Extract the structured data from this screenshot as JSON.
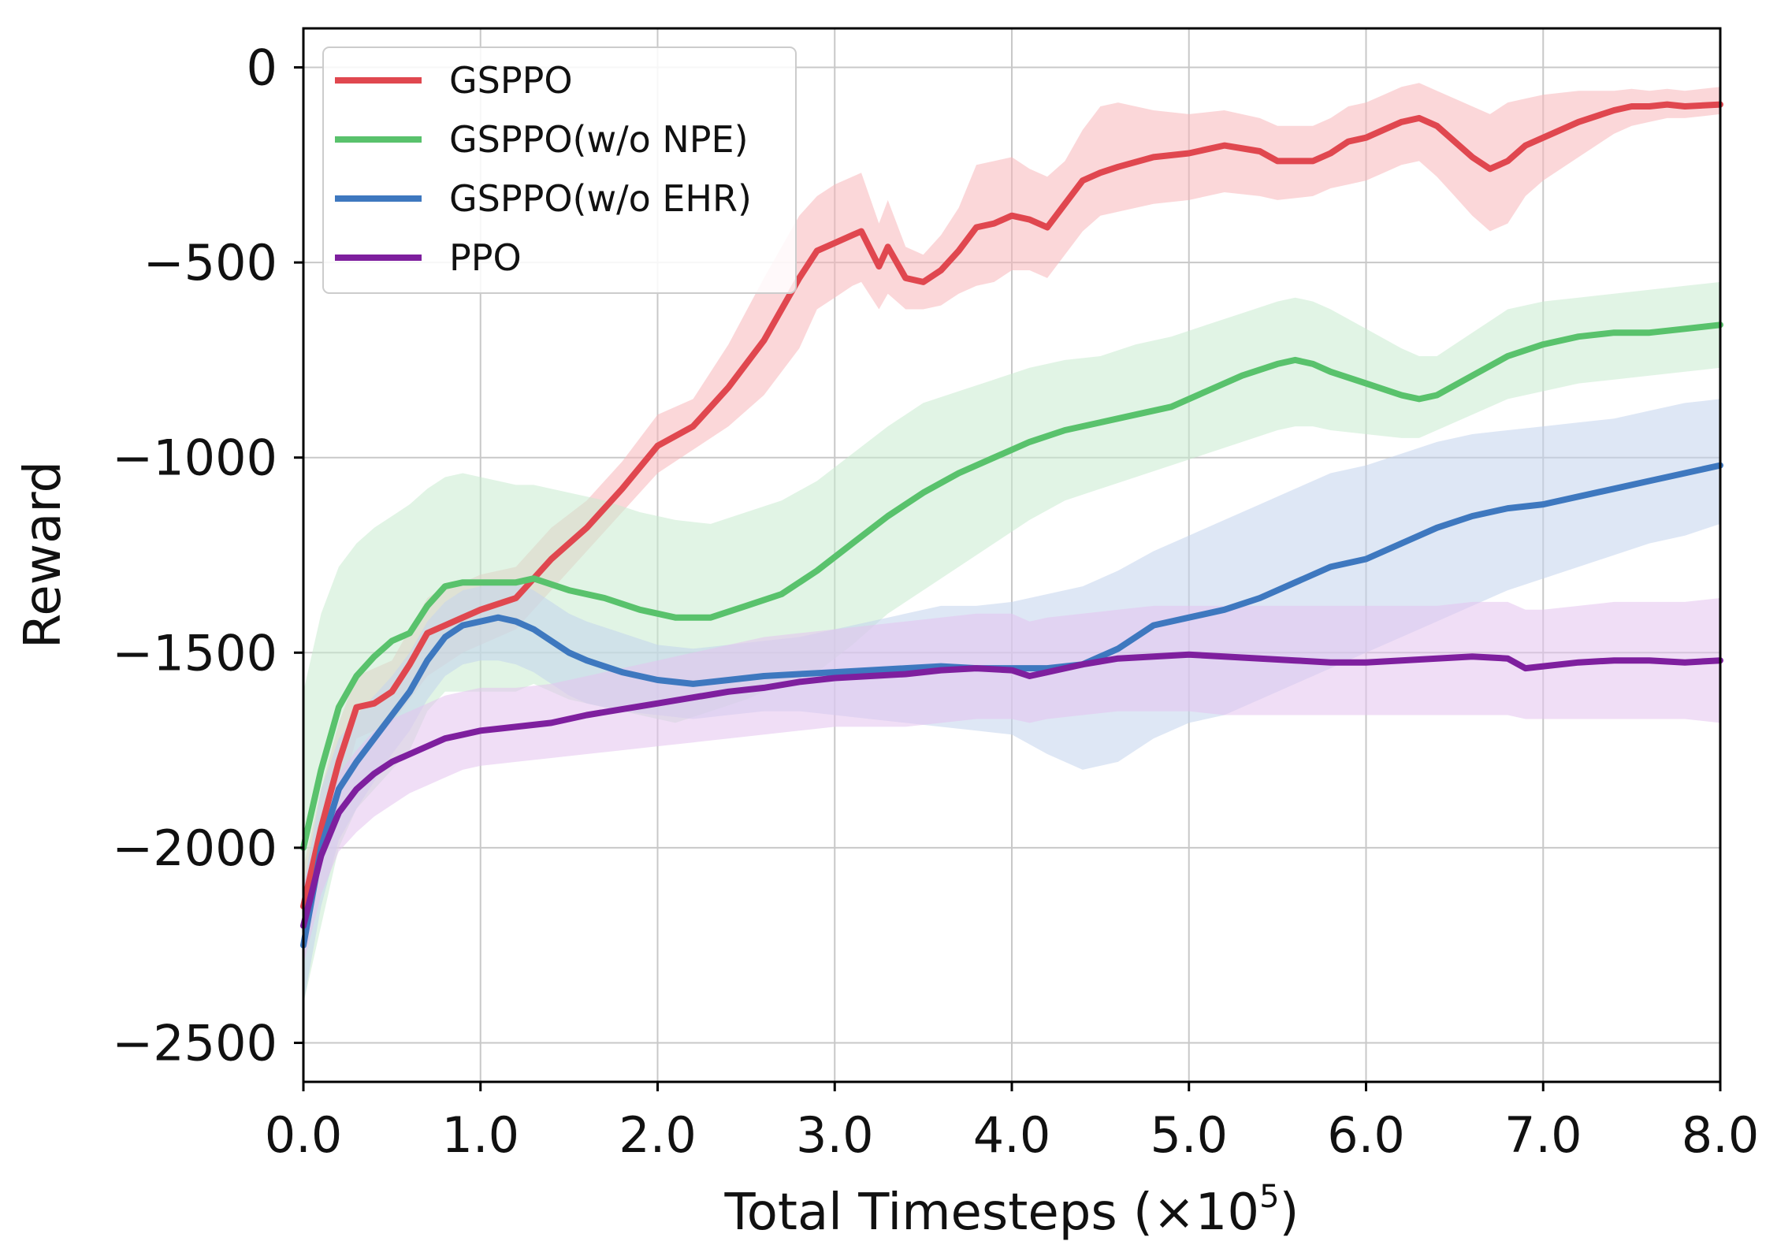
{
  "chart_data": {
    "type": "line",
    "title": "",
    "xlabel": "Total Timesteps (×10",
    "xlabel_exponent": "5",
    "xlabel_close": ")",
    "ylabel": "Reward",
    "xlim": [
      0,
      8
    ],
    "ylim": [
      -2600,
      100
    ],
    "grid": true,
    "legend_position": "top-left",
    "xticks": [
      0,
      1,
      2,
      3,
      4,
      5,
      6,
      7,
      8
    ],
    "xtick_labels": [
      "0.0",
      "1.0",
      "2.0",
      "3.0",
      "4.0",
      "5.0",
      "6.0",
      "7.0",
      "8.0"
    ],
    "yticks": [
      0,
      -500,
      -1000,
      -1500,
      -2000,
      -2500
    ],
    "ytick_labels": [
      "0",
      "−500",
      "−1000",
      "−1500",
      "−2000",
      "−2500"
    ],
    "series": [
      {
        "name": "GSPPO",
        "color": "#e0474f",
        "band_color": "#f7b6b9",
        "x": [
          0,
          0.1,
          0.2,
          0.3,
          0.4,
          0.5,
          0.6,
          0.7,
          0.8,
          0.9,
          1.0,
          1.2,
          1.4,
          1.6,
          1.8,
          2.0,
          2.2,
          2.4,
          2.6,
          2.8,
          2.9,
          3.0,
          3.1,
          3.15,
          3.25,
          3.3,
          3.4,
          3.5,
          3.6,
          3.7,
          3.8,
          3.9,
          4.0,
          4.1,
          4.2,
          4.3,
          4.4,
          4.5,
          4.6,
          4.8,
          5.0,
          5.2,
          5.4,
          5.5,
          5.7,
          5.8,
          5.9,
          6.0,
          6.1,
          6.2,
          6.3,
          6.4,
          6.5,
          6.6,
          6.7,
          6.8,
          6.9,
          7.0,
          7.2,
          7.4,
          7.5,
          7.6,
          7.7,
          7.8,
          8.0
        ],
        "y": [
          -2150,
          -1950,
          -1780,
          -1640,
          -1630,
          -1600,
          -1530,
          -1450,
          -1430,
          -1410,
          -1390,
          -1360,
          -1260,
          -1180,
          -1080,
          -970,
          -920,
          -820,
          -700,
          -540,
          -470,
          -450,
          -430,
          -420,
          -510,
          -460,
          -540,
          -550,
          -520,
          -470,
          -410,
          -400,
          -380,
          -390,
          -410,
          -350,
          -290,
          -270,
          -255,
          -230,
          -220,
          -200,
          -215,
          -240,
          -240,
          -220,
          -190,
          -180,
          -160,
          -140,
          -130,
          -150,
          -190,
          -230,
          -260,
          -240,
          -200,
          -180,
          -140,
          -110,
          -100,
          -100,
          -95,
          -100,
          -95
        ],
        "lower": [
          -2250,
          -2050,
          -1880,
          -1720,
          -1700,
          -1680,
          -1620,
          -1560,
          -1530,
          -1500,
          -1480,
          -1440,
          -1340,
          -1240,
          -1140,
          -1040,
          -980,
          -920,
          -840,
          -720,
          -620,
          -590,
          -560,
          -550,
          -620,
          -580,
          -620,
          -620,
          -610,
          -580,
          -560,
          -550,
          -520,
          -520,
          -540,
          -480,
          -420,
          -380,
          -370,
          -350,
          -340,
          -320,
          -330,
          -340,
          -330,
          -310,
          -300,
          -290,
          -270,
          -250,
          -240,
          -280,
          -330,
          -380,
          -420,
          -400,
          -330,
          -290,
          -230,
          -170,
          -150,
          -140,
          -130,
          -130,
          -120
        ],
        "upper": [
          -2050,
          -1850,
          -1680,
          -1560,
          -1540,
          -1520,
          -1440,
          -1360,
          -1330,
          -1320,
          -1300,
          -1280,
          -1180,
          -1110,
          -1010,
          -890,
          -850,
          -710,
          -540,
          -380,
          -330,
          -300,
          -280,
          -270,
          -400,
          -340,
          -460,
          -480,
          -430,
          -360,
          -250,
          -240,
          -230,
          -260,
          -280,
          -240,
          -160,
          -100,
          -90,
          -110,
          -120,
          -110,
          -130,
          -150,
          -150,
          -130,
          -100,
          -90,
          -70,
          -50,
          -40,
          -60,
          -80,
          -100,
          -120,
          -90,
          -80,
          -70,
          -60,
          -60,
          -55,
          -60,
          -55,
          -60,
          -50
        ]
      },
      {
        "name": "GSPPO(w/o NPE)",
        "color": "#59c26c",
        "band_color": "#c9ebcf",
        "x": [
          0,
          0.1,
          0.2,
          0.3,
          0.4,
          0.5,
          0.6,
          0.7,
          0.8,
          0.9,
          1.0,
          1.1,
          1.2,
          1.3,
          1.5,
          1.7,
          1.9,
          2.1,
          2.3,
          2.5,
          2.7,
          2.9,
          3.1,
          3.3,
          3.5,
          3.7,
          3.9,
          4.1,
          4.3,
          4.5,
          4.7,
          4.9,
          5.1,
          5.3,
          5.5,
          5.6,
          5.7,
          5.8,
          6.0,
          6.2,
          6.3,
          6.4,
          6.6,
          6.8,
          7.0,
          7.2,
          7.4,
          7.6,
          7.8,
          8.0
        ],
        "y": [
          -2000,
          -1800,
          -1640,
          -1560,
          -1510,
          -1470,
          -1450,
          -1380,
          -1330,
          -1320,
          -1320,
          -1320,
          -1320,
          -1310,
          -1340,
          -1360,
          -1390,
          -1410,
          -1410,
          -1380,
          -1350,
          -1290,
          -1220,
          -1150,
          -1090,
          -1040,
          -1000,
          -960,
          -930,
          -910,
          -890,
          -870,
          -830,
          -790,
          -760,
          -750,
          -760,
          -780,
          -810,
          -840,
          -850,
          -840,
          -790,
          -740,
          -710,
          -690,
          -680,
          -680,
          -670,
          -660
        ],
        "lower": [
          -2400,
          -2200,
          -2000,
          -1900,
          -1850,
          -1800,
          -1750,
          -1650,
          -1600,
          -1600,
          -1600,
          -1600,
          -1600,
          -1580,
          -1620,
          -1640,
          -1660,
          -1680,
          -1650,
          -1620,
          -1580,
          -1550,
          -1480,
          -1400,
          -1340,
          -1280,
          -1220,
          -1160,
          -1110,
          -1080,
          -1050,
          -1020,
          -990,
          -960,
          -930,
          -920,
          -920,
          -930,
          -940,
          -950,
          -950,
          -930,
          -890,
          -850,
          -830,
          -810,
          -800,
          -790,
          -780,
          -770
        ],
        "upper": [
          -1600,
          -1400,
          -1280,
          -1220,
          -1180,
          -1150,
          -1120,
          -1080,
          -1050,
          -1040,
          -1050,
          -1060,
          -1070,
          -1070,
          -1090,
          -1110,
          -1140,
          -1160,
          -1170,
          -1140,
          -1110,
          -1060,
          -990,
          -920,
          -860,
          -830,
          -800,
          -770,
          -750,
          -740,
          -710,
          -690,
          -660,
          -630,
          -600,
          -590,
          -600,
          -620,
          -670,
          -720,
          -740,
          -740,
          -680,
          -620,
          -600,
          -590,
          -580,
          -570,
          -560,
          -550
        ]
      },
      {
        "name": "GSPPO(w/o EHR)",
        "color": "#3e78bf",
        "band_color": "#c3d4ec",
        "x": [
          0,
          0.1,
          0.2,
          0.3,
          0.4,
          0.5,
          0.6,
          0.7,
          0.8,
          0.9,
          1.0,
          1.1,
          1.2,
          1.3,
          1.4,
          1.5,
          1.6,
          1.8,
          2.0,
          2.2,
          2.4,
          2.6,
          2.8,
          3.0,
          3.2,
          3.4,
          3.6,
          3.8,
          4.0,
          4.2,
          4.4,
          4.6,
          4.8,
          5.0,
          5.2,
          5.4,
          5.6,
          5.8,
          6.0,
          6.2,
          6.4,
          6.6,
          6.8,
          7.0,
          7.2,
          7.4,
          7.6,
          7.8,
          8.0
        ],
        "y": [
          -2250,
          -2000,
          -1850,
          -1780,
          -1720,
          -1660,
          -1600,
          -1520,
          -1460,
          -1430,
          -1420,
          -1410,
          -1420,
          -1440,
          -1470,
          -1500,
          -1520,
          -1550,
          -1570,
          -1580,
          -1570,
          -1560,
          -1555,
          -1550,
          -1545,
          -1540,
          -1535,
          -1540,
          -1540,
          -1540,
          -1530,
          -1490,
          -1430,
          -1410,
          -1390,
          -1360,
          -1320,
          -1280,
          -1260,
          -1220,
          -1180,
          -1150,
          -1130,
          -1120,
          -1100,
          -1080,
          -1060,
          -1040,
          -1020
        ],
        "lower": [
          -2400,
          -2150,
          -1980,
          -1900,
          -1830,
          -1760,
          -1700,
          -1620,
          -1560,
          -1530,
          -1520,
          -1520,
          -1530,
          -1550,
          -1580,
          -1610,
          -1630,
          -1650,
          -1660,
          -1670,
          -1660,
          -1650,
          -1650,
          -1660,
          -1670,
          -1680,
          -1690,
          -1700,
          -1710,
          -1760,
          -1800,
          -1780,
          -1720,
          -1680,
          -1660,
          -1620,
          -1580,
          -1540,
          -1500,
          -1460,
          -1420,
          -1380,
          -1340,
          -1310,
          -1280,
          -1250,
          -1220,
          -1200,
          -1170
        ],
        "upper": [
          -2100,
          -1850,
          -1720,
          -1660,
          -1610,
          -1560,
          -1500,
          -1420,
          -1370,
          -1340,
          -1330,
          -1320,
          -1320,
          -1340,
          -1370,
          -1400,
          -1420,
          -1450,
          -1480,
          -1490,
          -1480,
          -1470,
          -1460,
          -1440,
          -1420,
          -1400,
          -1380,
          -1380,
          -1370,
          -1350,
          -1330,
          -1290,
          -1240,
          -1200,
          -1160,
          -1120,
          -1080,
          -1040,
          -1020,
          -990,
          -960,
          -940,
          -930,
          -920,
          -910,
          -900,
          -880,
          -860,
          -850
        ]
      },
      {
        "name": "PPO",
        "color": "#7e1f9e",
        "band_color": "#e3c3ee",
        "x": [
          0,
          0.1,
          0.2,
          0.3,
          0.4,
          0.5,
          0.6,
          0.7,
          0.8,
          0.9,
          1.0,
          1.2,
          1.4,
          1.6,
          1.8,
          2.0,
          2.2,
          2.4,
          2.6,
          2.8,
          3.0,
          3.2,
          3.4,
          3.6,
          3.8,
          4.0,
          4.1,
          4.2,
          4.4,
          4.6,
          4.8,
          5.0,
          5.2,
          5.4,
          5.6,
          5.8,
          6.0,
          6.2,
          6.4,
          6.6,
          6.8,
          6.9,
          7.0,
          7.2,
          7.4,
          7.6,
          7.8,
          8.0
        ],
        "y": [
          -2200,
          -2020,
          -1910,
          -1850,
          -1810,
          -1780,
          -1760,
          -1740,
          -1720,
          -1710,
          -1700,
          -1690,
          -1680,
          -1660,
          -1645,
          -1630,
          -1615,
          -1600,
          -1590,
          -1575,
          -1565,
          -1560,
          -1555,
          -1545,
          -1540,
          -1545,
          -1560,
          -1550,
          -1530,
          -1515,
          -1510,
          -1505,
          -1510,
          -1515,
          -1520,
          -1525,
          -1525,
          -1520,
          -1515,
          -1510,
          -1515,
          -1540,
          -1535,
          -1525,
          -1520,
          -1520,
          -1525,
          -1520
        ],
        "lower": [
          -2300,
          -2120,
          -2010,
          -1960,
          -1920,
          -1890,
          -1860,
          -1840,
          -1820,
          -1800,
          -1790,
          -1780,
          -1770,
          -1760,
          -1750,
          -1740,
          -1730,
          -1720,
          -1710,
          -1700,
          -1690,
          -1690,
          -1690,
          -1680,
          -1670,
          -1670,
          -1680,
          -1670,
          -1660,
          -1650,
          -1650,
          -1650,
          -1660,
          -1660,
          -1660,
          -1660,
          -1660,
          -1660,
          -1660,
          -1660,
          -1660,
          -1670,
          -1670,
          -1670,
          -1670,
          -1670,
          -1670,
          -1680
        ],
        "upper": [
          -2100,
          -1920,
          -1810,
          -1750,
          -1700,
          -1670,
          -1650,
          -1630,
          -1610,
          -1600,
          -1590,
          -1590,
          -1580,
          -1560,
          -1540,
          -1520,
          -1500,
          -1480,
          -1460,
          -1450,
          -1440,
          -1430,
          -1420,
          -1410,
          -1400,
          -1400,
          -1420,
          -1410,
          -1400,
          -1390,
          -1380,
          -1380,
          -1380,
          -1380,
          -1380,
          -1380,
          -1380,
          -1380,
          -1380,
          -1370,
          -1370,
          -1390,
          -1390,
          -1380,
          -1370,
          -1370,
          -1370,
          -1360
        ]
      }
    ]
  }
}
